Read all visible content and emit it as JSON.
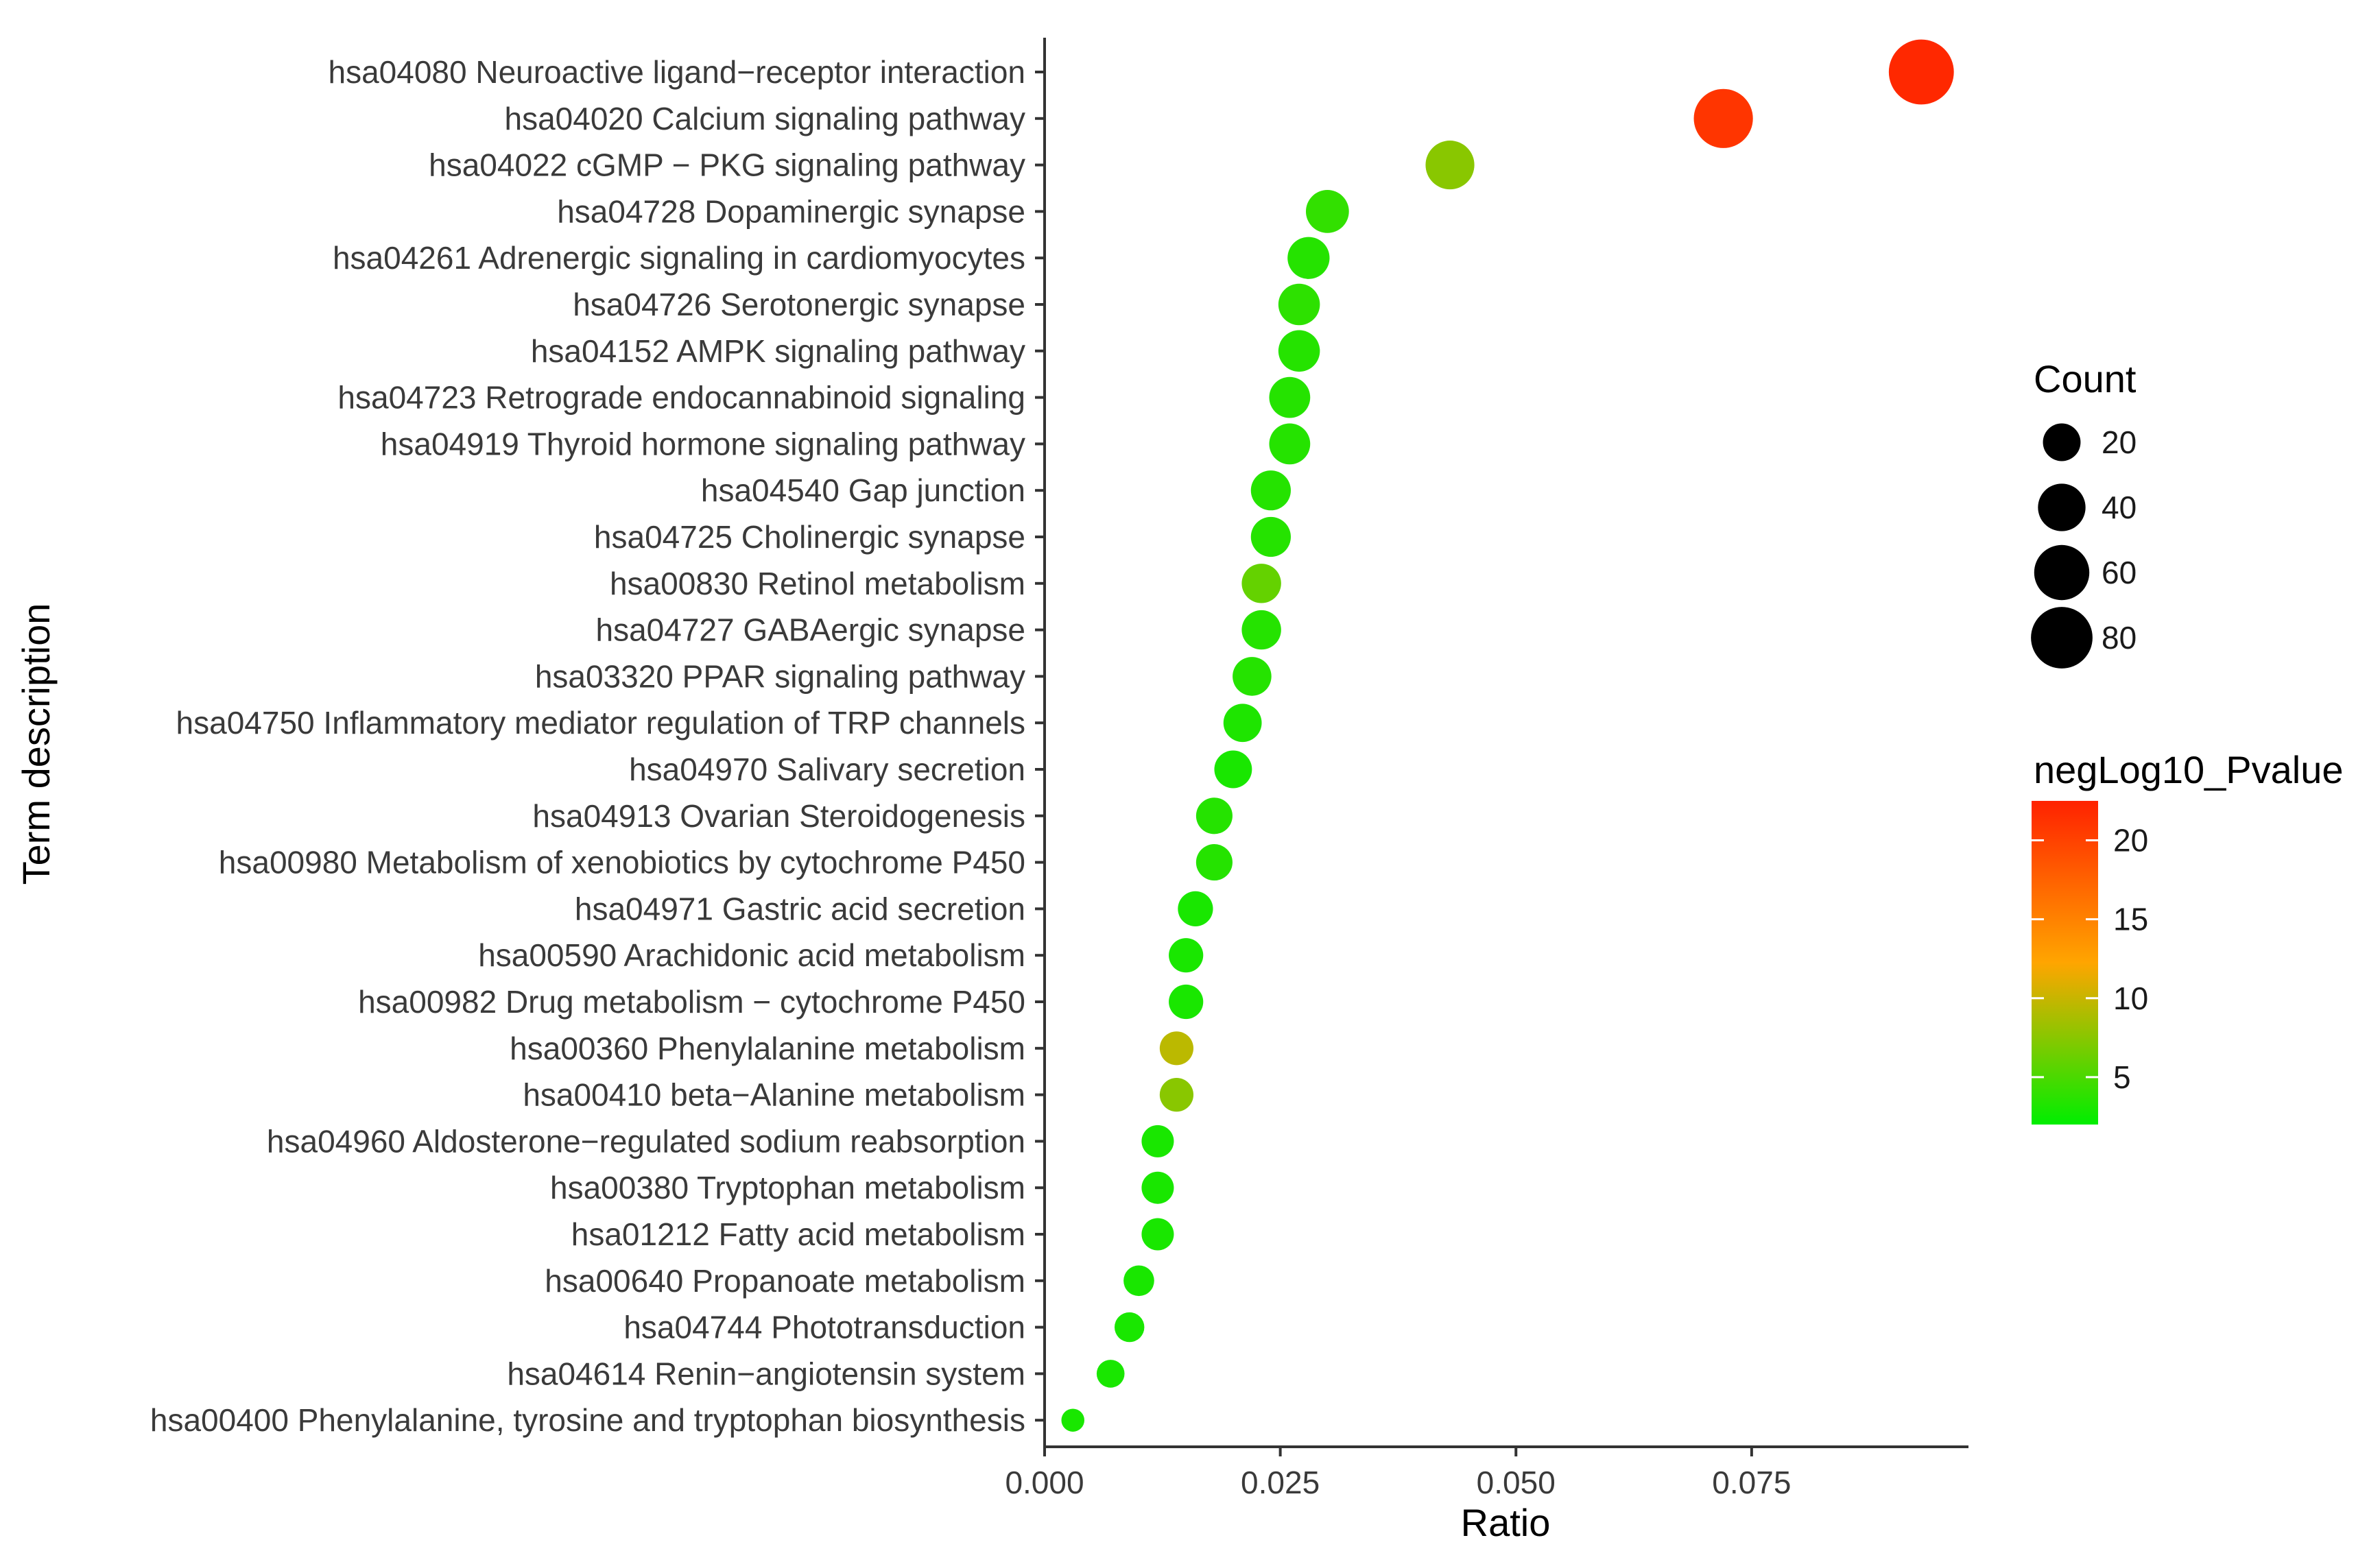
{
  "colors": {
    "low": "#00ee00",
    "mid": "#ffa500",
    "high": "#ff2200"
  },
  "chart_data": {
    "type": "scatter",
    "xlabel": "Ratio",
    "ylabel": "Term description",
    "xlim": [
      0.0,
      0.098
    ],
    "x_ticks": [
      0.0,
      0.025,
      0.05,
      0.075
    ],
    "x_tick_labels": [
      "0.000",
      "0.025",
      "0.050",
      "0.075"
    ],
    "grid": false,
    "legend_position": "right",
    "size_legend": {
      "title": "Count",
      "values": [
        20,
        40,
        60,
        80
      ],
      "labels": [
        "20",
        "40",
        "60",
        "80"
      ]
    },
    "color_legend": {
      "title": "negLog10_Pvalue",
      "range": [
        2,
        22.5
      ],
      "ticks": [
        5,
        10,
        15,
        20
      ],
      "tick_labels": [
        "5",
        "10",
        "15",
        "20"
      ]
    },
    "terms": [
      {
        "label": "hsa04080 Neuroactive ligand−receptor interaction",
        "ratio": 0.093,
        "count": 92,
        "neglog10p": 22.0
      },
      {
        "label": "hsa04020 Calcium signaling pathway",
        "ratio": 0.072,
        "count": 72,
        "neglog10p": 21.0
      },
      {
        "label": "hsa04022 cGMP − PKG signaling pathway",
        "ratio": 0.043,
        "count": 43,
        "neglog10p": 7.5
      },
      {
        "label": "hsa04728 Dopaminergic synapse",
        "ratio": 0.03,
        "count": 30,
        "neglog10p": 4.0
      },
      {
        "label": "hsa04261 Adrenergic signaling in cardiomyocytes",
        "ratio": 0.028,
        "count": 28,
        "neglog10p": 3.5
      },
      {
        "label": "hsa04726 Serotonergic synapse",
        "ratio": 0.027,
        "count": 27,
        "neglog10p": 3.8
      },
      {
        "label": "hsa04152 AMPK signaling pathway",
        "ratio": 0.027,
        "count": 27,
        "neglog10p": 3.5
      },
      {
        "label": "hsa04723 Retrograde endocannabinoid signaling",
        "ratio": 0.026,
        "count": 26,
        "neglog10p": 3.5
      },
      {
        "label": "hsa04919 Thyroid hormone signaling pathway",
        "ratio": 0.026,
        "count": 26,
        "neglog10p": 3.5
      },
      {
        "label": "hsa04540 Gap junction",
        "ratio": 0.024,
        "count": 24,
        "neglog10p": 3.5
      },
      {
        "label": "hsa04725 Cholinergic synapse",
        "ratio": 0.024,
        "count": 24,
        "neglog10p": 3.5
      },
      {
        "label": "hsa00830 Retinol metabolism",
        "ratio": 0.023,
        "count": 23,
        "neglog10p": 6.0
      },
      {
        "label": "hsa04727 GABAergic synapse",
        "ratio": 0.023,
        "count": 23,
        "neglog10p": 3.5
      },
      {
        "label": "hsa03320 PPAR signaling pathway",
        "ratio": 0.022,
        "count": 22,
        "neglog10p": 3.5
      },
      {
        "label": "hsa04750 Inflammatory mediator regulation of TRP channels",
        "ratio": 0.021,
        "count": 21,
        "neglog10p": 3.2
      },
      {
        "label": "hsa04970 Salivary secretion",
        "ratio": 0.02,
        "count": 20,
        "neglog10p": 3.0
      },
      {
        "label": "hsa04913 Ovarian Steroidogenesis",
        "ratio": 0.018,
        "count": 18,
        "neglog10p": 3.5
      },
      {
        "label": "hsa00980 Metabolism of xenobiotics by cytochrome P450",
        "ratio": 0.018,
        "count": 18,
        "neglog10p": 3.5
      },
      {
        "label": "hsa04971 Gastric acid secretion",
        "ratio": 0.016,
        "count": 16,
        "neglog10p": 3.0
      },
      {
        "label": "hsa00590 Arachidonic acid metabolism",
        "ratio": 0.015,
        "count": 15,
        "neglog10p": 3.0
      },
      {
        "label": "hsa00982 Drug metabolism − cytochrome P450",
        "ratio": 0.015,
        "count": 15,
        "neglog10p": 3.0
      },
      {
        "label": "hsa00360 Phenylalanine metabolism",
        "ratio": 0.014,
        "count": 14,
        "neglog10p": 9.5
      },
      {
        "label": "hsa00410 beta−Alanine metabolism",
        "ratio": 0.014,
        "count": 14,
        "neglog10p": 7.5
      },
      {
        "label": "hsa04960 Aldosterone−regulated sodium reabsorption",
        "ratio": 0.012,
        "count": 12,
        "neglog10p": 3.0
      },
      {
        "label": "hsa00380 Tryptophan metabolism",
        "ratio": 0.012,
        "count": 12,
        "neglog10p": 3.0
      },
      {
        "label": "hsa01212 Fatty acid metabolism",
        "ratio": 0.012,
        "count": 12,
        "neglog10p": 3.0
      },
      {
        "label": "hsa00640 Propanoate metabolism",
        "ratio": 0.01,
        "count": 10,
        "neglog10p": 3.0
      },
      {
        "label": "hsa04744 Phototransduction",
        "ratio": 0.009,
        "count": 9,
        "neglog10p": 3.0
      },
      {
        "label": "hsa04614 Renin−angiotensin system",
        "ratio": 0.007,
        "count": 7,
        "neglog10p": 3.0
      },
      {
        "label": "hsa00400 Phenylalanine, tyrosine and tryptophan biosynthesis",
        "ratio": 0.003,
        "count": 3,
        "neglog10p": 3.0
      }
    ]
  }
}
